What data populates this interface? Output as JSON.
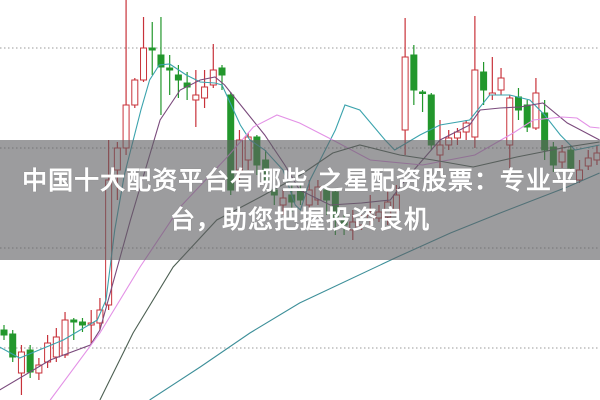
{
  "overlay": {
    "title_line1": "中国十大配资平台有哪些 之星配资股票：专业平",
    "title_line2": "台，助您把握投资良机"
  },
  "chart_data": {
    "type": "candlestick",
    "grid": true,
    "grid_style": "dotted horizontal",
    "axes_visible": false,
    "colors": {
      "up": "#c8323a",
      "down": "#22972c",
      "ma5": "#3ba3ad",
      "ma10": "#7a4a7c",
      "ma20": "#e391e6",
      "ma30": "#4c5f52",
      "ma60": "#3d8f99",
      "banner": "#5f5f62"
    },
    "candles": [
      [
        7.0,
        7.5,
        6.0,
        6.5
      ],
      [
        6.6,
        7.0,
        3.8,
        4.3
      ],
      [
        2.7,
        5.5,
        0.5,
        4.8
      ],
      [
        5.0,
        5.5,
        2.2,
        2.8
      ],
      [
        2.7,
        4.2,
        2.0,
        3.5
      ],
      [
        3.8,
        6.5,
        3.2,
        5.7
      ],
      [
        4.3,
        7.2,
        3.8,
        6.3
      ],
      [
        4.5,
        8.8,
        4.2,
        8.0
      ],
      [
        8.0,
        8.2,
        6.0,
        7.8
      ],
      [
        7.8,
        8.2,
        6.8,
        7.5
      ],
      [
        7.5,
        9.0,
        5.5,
        7.7
      ],
      [
        7.7,
        10.2,
        7.0,
        9.0
      ],
      [
        9.5,
        26.0,
        9.0,
        22.0
      ],
      [
        23.0,
        25.8,
        20.0,
        25.2
      ],
      [
        25.2,
        40.0,
        24.5,
        29.5
      ],
      [
        29.5,
        32.2,
        29.2,
        32.0
      ],
      [
        32.0,
        38.3,
        31.8,
        35.2
      ],
      [
        35.2,
        37.8,
        32.5,
        35.0
      ],
      [
        34.5,
        38.3,
        28.5,
        33.3
      ],
      [
        33.2,
        34.5,
        30.5,
        33.0
      ],
      [
        32.5,
        33.5,
        30.2,
        32.0
      ],
      [
        31.7,
        32.8,
        30.0,
        31.3
      ],
      [
        30.0,
        33.0,
        27.3,
        30.5
      ],
      [
        30.2,
        33.0,
        29.2,
        31.3
      ],
      [
        31.5,
        35.6,
        31.2,
        33.0
      ],
      [
        33.2,
        33.5,
        31.0,
        32.5
      ],
      [
        30.5,
        30.8,
        20.5,
        21.0
      ],
      [
        23.0,
        27.0,
        22.0,
        26.0
      ],
      [
        24.0,
        26.7,
        23.0,
        26.3
      ],
      [
        26.3,
        26.5,
        22.5,
        23.5
      ],
      [
        24.0,
        25.0,
        21.0,
        22.0
      ],
      [
        21.0,
        22.0,
        19.5,
        20.5
      ],
      [
        19.5,
        21.0,
        18.5,
        20.2
      ],
      [
        20.5,
        21.5,
        18.8,
        19.8
      ],
      [
        21.0,
        21.5,
        19.5,
        20.0
      ],
      [
        19.5,
        22.0,
        19.0,
        21.0
      ],
      [
        20.0,
        22.0,
        19.5,
        21.3
      ],
      [
        21.0,
        21.5,
        18.5,
        20.0
      ],
      [
        20.8,
        21.2,
        16.5,
        18.0
      ],
      [
        18.0,
        19.0,
        16.5,
        17.5
      ],
      [
        17.0,
        19.0,
        16.0,
        17.8
      ],
      [
        17.5,
        18.5,
        17.0,
        18.0
      ],
      [
        18.0,
        20.5,
        17.5,
        18.5
      ],
      [
        18.2,
        19.5,
        17.8,
        18.8
      ],
      [
        18.3,
        21.0,
        17.5,
        19.8
      ],
      [
        19.0,
        21.5,
        18.5,
        20.5
      ],
      [
        27.0,
        38.2,
        24.5,
        34.3
      ],
      [
        34.5,
        35.5,
        29.5,
        31.0
      ],
      [
        30.8,
        31.0,
        28.8,
        30.7
      ],
      [
        30.5,
        30.7,
        25.0,
        25.5
      ],
      [
        24.5,
        28.0,
        23.0,
        25.5
      ],
      [
        25.5,
        27.0,
        25.0,
        26.2
      ],
      [
        26.2,
        27.2,
        25.5,
        26.8
      ],
      [
        26.8,
        28.0,
        26.0,
        27.7
      ],
      [
        26.3,
        38.4,
        25.2,
        33.0
      ],
      [
        32.8,
        33.8,
        29.5,
        31.0
      ],
      [
        30.5,
        34.3,
        30.0,
        30.7
      ],
      [
        31.0,
        33.2,
        30.5,
        32.2
      ],
      [
        25.5,
        30.5,
        23.2,
        30.2
      ],
      [
        30.3,
        31.2,
        28.0,
        29.0
      ],
      [
        29.5,
        30.0,
        26.8,
        27.3
      ],
      [
        27.2,
        32.2,
        27.0,
        30.7
      ],
      [
        28.7,
        30.0,
        24.0,
        25.0
      ],
      [
        25.3,
        25.8,
        22.8,
        23.5
      ],
      [
        23.8,
        25.5,
        23.2,
        24.8
      ],
      [
        25.0,
        25.5,
        22.2,
        23.2
      ],
      [
        22.0,
        24.0,
        21.7,
        23.0
      ],
      [
        23.4,
        25.0,
        23.0,
        24.2
      ],
      [
        24.0,
        25.5,
        23.5,
        24.7
      ]
    ],
    "candle_fields": [
      "open",
      "high",
      "low",
      "close"
    ],
    "moving_averages": [
      {
        "key": "ma5",
        "points": [
          [
            -0.5,
            5.3
          ],
          [
            1.8,
            4.2
          ],
          [
            6.8,
            6.0
          ],
          [
            10.7,
            8.0
          ],
          [
            11.7,
            10.0
          ],
          [
            12.7,
            17.0
          ],
          [
            13.8,
            22.5
          ],
          [
            15.7,
            29.0
          ],
          [
            16.7,
            32.0
          ],
          [
            17.8,
            33.5
          ],
          [
            19.0,
            33.6
          ],
          [
            20.9,
            32.5
          ],
          [
            22.5,
            31.8
          ],
          [
            24.2,
            31.7
          ],
          [
            25.0,
            31.5
          ],
          [
            27.1,
            27.5
          ],
          [
            28.2,
            26.0
          ],
          [
            29.9,
            25.0
          ],
          [
            32.0,
            23.0
          ],
          [
            33.4,
            19.5
          ],
          [
            34.0,
            19.0
          ],
          [
            35.1,
            22.0
          ],
          [
            38.0,
            27.0
          ],
          [
            39.1,
            29.5
          ],
          [
            40.8,
            29.0
          ],
          [
            43.7,
            26.0
          ],
          [
            44.8,
            25.0
          ],
          [
            47.7,
            26.5
          ],
          [
            50.0,
            27.5
          ],
          [
            53.4,
            28.0
          ],
          [
            55.7,
            30.5
          ],
          [
            58.0,
            30.5
          ],
          [
            60.3,
            30.0
          ],
          [
            62.0,
            28.5
          ],
          [
            63.8,
            26.5
          ],
          [
            65.5,
            25.0
          ],
          [
            68.3,
            25.5
          ]
        ]
      },
      {
        "key": "ma10",
        "points": [
          [
            -0.5,
            1.0
          ],
          [
            5.3,
            4.0
          ],
          [
            9.9,
            5.5
          ],
          [
            11,
            7.0
          ],
          [
            14.5,
            18.0
          ],
          [
            17.9,
            28.0
          ],
          [
            20.2,
            31.0
          ],
          [
            22.5,
            32.0
          ],
          [
            24.2,
            32.3
          ],
          [
            25.3,
            31.5
          ],
          [
            27.6,
            29.0
          ],
          [
            29.9,
            26.5
          ],
          [
            32.2,
            23.5
          ],
          [
            33.9,
            21.0
          ],
          [
            37.4,
            19.5
          ],
          [
            41,
            19.7
          ],
          [
            44.3,
            20.0
          ],
          [
            46,
            22.0
          ],
          [
            50,
            26.0
          ],
          [
            53.4,
            27.5
          ],
          [
            54.6,
            29.0
          ],
          [
            56.9,
            29.2
          ],
          [
            59.2,
            29.3
          ],
          [
            61.8,
            29.7
          ],
          [
            64.6,
            27.7
          ],
          [
            68.3,
            26.0
          ]
        ]
      },
      {
        "key": "ma20",
        "points": [
          [
            5.3,
            0
          ],
          [
            11,
            6.7
          ],
          [
            15.6,
            13.3
          ],
          [
            20.2,
            19.3
          ],
          [
            25.6,
            24.3
          ],
          [
            28.6,
            27.3
          ],
          [
            31.3,
            28.5
          ],
          [
            33.9,
            27.7
          ],
          [
            37.7,
            26.0
          ],
          [
            42,
            24.0
          ],
          [
            48,
            23.5
          ],
          [
            54,
            24.5
          ],
          [
            58.4,
            26.7
          ],
          [
            60.7,
            28.0
          ],
          [
            64,
            28.3
          ],
          [
            65.7,
            28.2
          ],
          [
            67.2,
            27.3
          ],
          [
            68.3,
            27.2
          ]
        ]
      },
      {
        "key": "ma30",
        "points": [
          [
            11,
            0
          ],
          [
            14.8,
            6.7
          ],
          [
            19.4,
            13.3
          ],
          [
            24.4,
            18.0
          ],
          [
            29.4,
            20.3
          ],
          [
            34,
            22.5
          ],
          [
            37.7,
            24.7
          ],
          [
            40.8,
            25.5
          ],
          [
            45.4,
            24.5
          ],
          [
            49.2,
            24.0
          ],
          [
            53.8,
            23.3
          ],
          [
            58.8,
            24.3
          ],
          [
            64.6,
            25.3
          ],
          [
            68.3,
            25.8
          ]
        ]
      },
      {
        "key": "ma60",
        "points": [
          [
            16.7,
            0
          ],
          [
            22.5,
            3.3
          ],
          [
            28.2,
            6.7
          ],
          [
            33.9,
            9.7
          ],
          [
            45.1,
            14.3
          ],
          [
            51.2,
            16.7
          ],
          [
            56.9,
            18.7
          ],
          [
            64.6,
            21.3
          ],
          [
            68.3,
            22.7
          ]
        ]
      }
    ]
  }
}
